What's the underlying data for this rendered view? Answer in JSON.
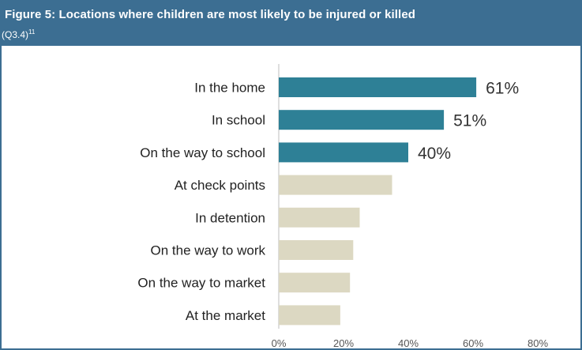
{
  "header": {
    "title": "Figure 5:  Locations where children are most likely to be injured or  killed",
    "subtitle": "(Q3.4)",
    "footnote": "11"
  },
  "colors": {
    "header_bg": "#3c6e92",
    "highlight_bar": "#2e8096",
    "muted_bar": "#dcd8c2"
  },
  "chart_data": {
    "type": "bar",
    "orientation": "horizontal",
    "categories": [
      "In the home",
      "In school",
      "On the way to school",
      "At check points",
      "In detention",
      "On the way to work",
      "On the way to market",
      "At the market"
    ],
    "values": [
      61,
      51,
      40,
      35,
      25,
      23,
      22,
      19
    ],
    "data_labels": [
      "61%",
      "51%",
      "40%",
      "",
      "",
      "",
      "",
      ""
    ],
    "highlighted": [
      true,
      true,
      true,
      false,
      false,
      false,
      false,
      false
    ],
    "xlim": [
      0,
      80
    ],
    "xticks": [
      "0%",
      "20%",
      "40%",
      "60%",
      "80%"
    ],
    "grid": false
  }
}
